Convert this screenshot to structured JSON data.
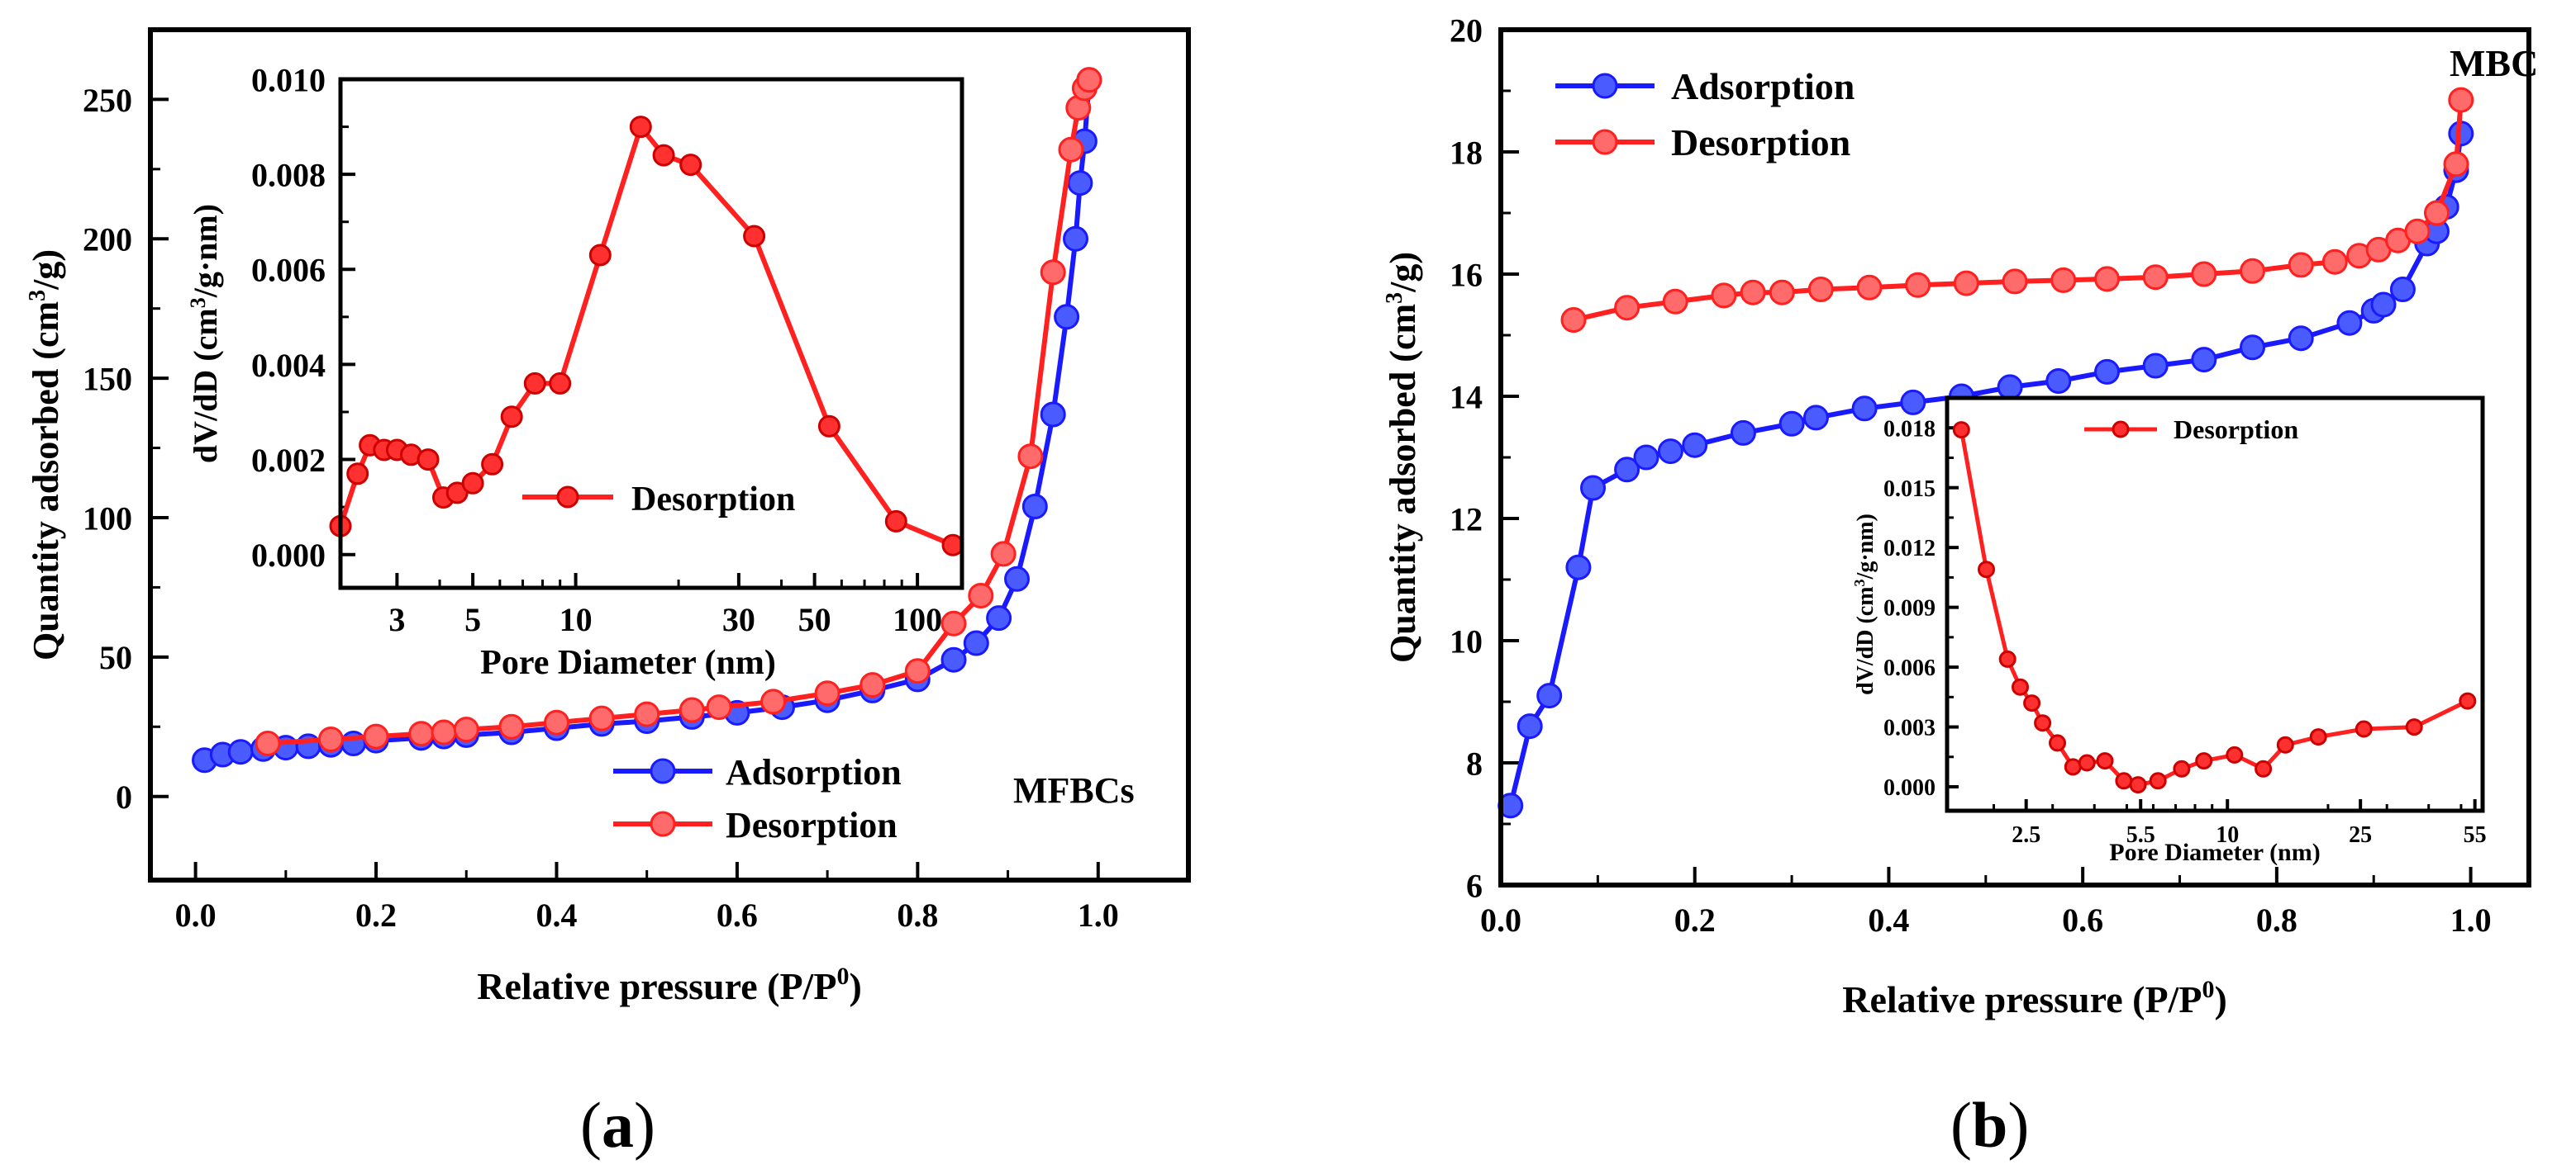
{
  "figure": {
    "panel_a_label": "a",
    "panel_b_label": "b"
  },
  "colors": {
    "adsorption": "#1a1aff",
    "adsorption_fill": "#4a5cff",
    "desorption": "#ff2020",
    "desorption_fill": "#ff6a6a",
    "axis": "#000000"
  },
  "chart_data": [
    {
      "id": "a_main",
      "type": "line",
      "title": "",
      "annotation": "MFBCs",
      "xlabel": "Relative pressure (P/P",
      "xlabel_sup": "0",
      "xlabel_end": ")",
      "ylabel": "Quantity adsorbed (cm",
      "ylabel_sup": "3",
      "ylabel_end": "/g)",
      "xlim": [
        -0.05,
        1.1
      ],
      "ylim": [
        -30,
        275
      ],
      "xticks": [
        0.0,
        0.2,
        0.4,
        0.6,
        0.8,
        1.0
      ],
      "xtick_labels": [
        "0.0",
        "0.2",
        "0.4",
        "0.6",
        "0.8",
        "1.0"
      ],
      "yticks": [
        0,
        50,
        100,
        150,
        200,
        250
      ],
      "ytick_labels": [
        "0",
        "50",
        "100",
        "150",
        "200",
        "250"
      ],
      "legend": "bottom-right",
      "series": [
        {
          "name": "Adsorption",
          "color": "#1a1aff",
          "x": [
            0.01,
            0.03,
            0.05,
            0.075,
            0.1,
            0.125,
            0.15,
            0.175,
            0.2,
            0.25,
            0.275,
            0.3,
            0.35,
            0.4,
            0.45,
            0.5,
            0.55,
            0.6,
            0.65,
            0.7,
            0.75,
            0.8,
            0.84,
            0.865,
            0.89,
            0.91,
            0.93,
            0.95,
            0.965,
            0.975,
            0.98,
            0.985,
            0.99
          ],
          "values": [
            13,
            15,
            16,
            17,
            17.5,
            18,
            18.5,
            19,
            20,
            21,
            21.5,
            22,
            23,
            24.5,
            26,
            27,
            28.5,
            30,
            32,
            34.5,
            38,
            42,
            49,
            55,
            64,
            78,
            104,
            137,
            172,
            200,
            220,
            235,
            257
          ]
        },
        {
          "name": "Desorption",
          "color": "#ff2020",
          "x": [
            0.08,
            0.15,
            0.2,
            0.25,
            0.275,
            0.3,
            0.35,
            0.4,
            0.45,
            0.5,
            0.55,
            0.58,
            0.64,
            0.7,
            0.75,
            0.8,
            0.84,
            0.87,
            0.895,
            0.925,
            0.95,
            0.97,
            0.978,
            0.985,
            0.99
          ],
          "values": [
            19,
            20.5,
            21.5,
            22.5,
            23,
            24,
            25,
            26.5,
            28,
            29.5,
            31,
            32,
            34,
            37,
            40,
            45,
            62,
            72,
            87,
            122,
            188,
            232,
            247,
            254,
            257
          ]
        }
      ]
    },
    {
      "id": "a_inset",
      "type": "line",
      "title": "",
      "xscale": "log",
      "xlabel": "Pore Diameter (nm)",
      "ylabel": "dV/dD (cm",
      "ylabel_sup": "3",
      "ylabel_end": "/g·nm)",
      "xlim": [
        2.05,
        135
      ],
      "ylim": [
        -0.0007,
        0.01
      ],
      "xticks": [
        3,
        5,
        10,
        30,
        50,
        100
      ],
      "xtick_labels": [
        "3",
        "5",
        "10",
        "30",
        "50",
        "100"
      ],
      "yticks": [
        0.0,
        0.002,
        0.004,
        0.006,
        0.008,
        0.01
      ],
      "ytick_labels": [
        "0.000",
        "0.002",
        "0.004",
        "0.006",
        "0.008",
        "0.010"
      ],
      "legend": "center-right",
      "series": [
        {
          "name": "Desorption",
          "color": "#ff2020",
          "x": [
            2.05,
            2.3,
            2.5,
            2.75,
            3.0,
            3.3,
            3.7,
            4.1,
            4.5,
            5.0,
            5.7,
            6.5,
            7.6,
            9.0,
            11.8,
            15.5,
            18.1,
            21.7,
            33.3,
            55.2,
            86.6,
            127
          ],
          "values": [
            0.0006,
            0.0017,
            0.0023,
            0.0022,
            0.0022,
            0.0021,
            0.002,
            0.0012,
            0.0013,
            0.0015,
            0.0019,
            0.0029,
            0.0036,
            0.0036,
            0.0063,
            0.009,
            0.0084,
            0.0082,
            0.0067,
            0.0027,
            0.0007,
            0.0002
          ]
        }
      ]
    },
    {
      "id": "b_main",
      "type": "line",
      "title": "",
      "annotation": "MBC",
      "xlabel": "Relative pressure (P/P",
      "xlabel_sup": "0",
      "xlabel_end": ")",
      "ylabel": "Quantity adsorbed (cm",
      "ylabel_sup": "3",
      "ylabel_end": "/g)",
      "xlim": [
        0.0,
        1.06
      ],
      "ylim": [
        6,
        20
      ],
      "xticks": [
        0.0,
        0.2,
        0.4,
        0.6,
        0.8,
        1.0
      ],
      "xtick_labels": [
        "0.0",
        "0.2",
        "0.4",
        "0.6",
        "0.8",
        "1.0"
      ],
      "yticks": [
        6,
        8,
        10,
        12,
        14,
        16,
        18,
        20
      ],
      "ytick_labels": [
        "6",
        "8",
        "10",
        "12",
        "14",
        "16",
        "18",
        "20"
      ],
      "legend": "top-left",
      "series": [
        {
          "name": "Adsorption",
          "color": "#1a1aff",
          "x": [
            0.01,
            0.03,
            0.05,
            0.08,
            0.095,
            0.13,
            0.15,
            0.175,
            0.2,
            0.25,
            0.3,
            0.325,
            0.375,
            0.425,
            0.475,
            0.525,
            0.575,
            0.625,
            0.675,
            0.725,
            0.775,
            0.825,
            0.875,
            0.9,
            0.91,
            0.93,
            0.955,
            0.965,
            0.975,
            0.985,
            0.99
          ],
          "values": [
            7.3,
            8.6,
            9.1,
            11.2,
            12.5,
            12.8,
            13.0,
            13.1,
            13.2,
            13.4,
            13.55,
            13.65,
            13.8,
            13.9,
            14.0,
            14.15,
            14.25,
            14.4,
            14.5,
            14.6,
            14.8,
            14.95,
            15.2,
            15.4,
            15.5,
            15.75,
            16.5,
            16.7,
            17.1,
            17.7,
            18.3
          ]
        },
        {
          "name": "Desorption",
          "color": "#ff2020",
          "x": [
            0.075,
            0.13,
            0.18,
            0.23,
            0.26,
            0.29,
            0.33,
            0.38,
            0.43,
            0.48,
            0.53,
            0.58,
            0.625,
            0.675,
            0.725,
            0.775,
            0.825,
            0.86,
            0.885,
            0.905,
            0.925,
            0.945,
            0.965,
            0.985,
            0.99
          ],
          "values": [
            15.25,
            15.45,
            15.55,
            15.65,
            15.7,
            15.7,
            15.75,
            15.78,
            15.82,
            15.85,
            15.88,
            15.9,
            15.92,
            15.95,
            16.0,
            16.05,
            16.15,
            16.2,
            16.3,
            16.4,
            16.55,
            16.7,
            17.0,
            17.8,
            18.85
          ]
        }
      ]
    },
    {
      "id": "b_inset",
      "type": "line",
      "title": "",
      "xscale": "log",
      "xlabel": "Pore Diameter (nm)",
      "ylabel": "dV/dD (cm",
      "ylabel_sup": "3",
      "ylabel_end": "/g·nm)",
      "xlim": [
        1.45,
        58
      ],
      "ylim": [
        -0.0012,
        0.0195
      ],
      "xticks": [
        2.5,
        5.5,
        10,
        25,
        55
      ],
      "xtick_labels": [
        "2.5",
        "5.5",
        "10",
        "25",
        "55"
      ],
      "yticks": [
        0.0,
        0.003,
        0.006,
        0.009,
        0.012,
        0.015,
        0.018
      ],
      "ytick_labels": [
        "0.000",
        "0.003",
        "0.006",
        "0.009",
        "0.012",
        "0.015",
        "0.018"
      ],
      "legend": "top-left",
      "series": [
        {
          "name": "Desorption",
          "color": "#ff2020",
          "x": [
            1.6,
            1.9,
            2.2,
            2.4,
            2.6,
            2.8,
            3.1,
            3.45,
            3.8,
            4.3,
            4.9,
            5.4,
            6.2,
            7.3,
            8.5,
            10.5,
            12.8,
            14.9,
            18.7,
            25.6,
            36.2,
            52.3
          ],
          "values": [
            0.0179,
            0.0109,
            0.0064,
            0.005,
            0.0042,
            0.0032,
            0.0022,
            0.001,
            0.0012,
            0.0013,
            0.0003,
            0.0001,
            0.0003,
            0.0009,
            0.0013,
            0.0016,
            0.0009,
            0.0021,
            0.0025,
            0.0029,
            0.003,
            0.0043
          ]
        }
      ]
    }
  ]
}
